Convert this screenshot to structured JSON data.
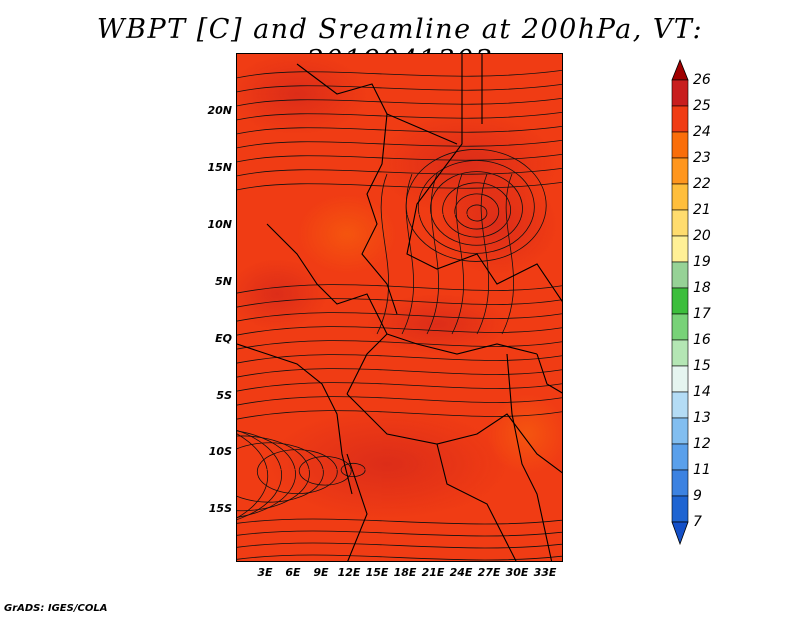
{
  "title": "WBPT [C] and Sreamline at 200hPa, VT: 2019041303",
  "footer": "GrADS: IGES/COLA",
  "map": {
    "variable": "WBPT [C]",
    "level": "200hPa",
    "valid_time": "2019041303",
    "lat_labels": [
      "20N",
      "15N",
      "10N",
      "5N",
      "EQ",
      "5S",
      "10S",
      "15S"
    ],
    "lon_labels": [
      "3E",
      "6E",
      "9E",
      "12E",
      "15E",
      "18E",
      "21E",
      "24E",
      "27E",
      "30E",
      "33E"
    ],
    "dominant_color": "#f03c14"
  },
  "colorbar": {
    "labels": [
      "26",
      "25",
      "24",
      "23",
      "22",
      "21",
      "20",
      "19",
      "18",
      "17",
      "16",
      "15",
      "14",
      "13",
      "12",
      "11",
      "9",
      "7"
    ],
    "colors": [
      "#a00000",
      "#c81e1e",
      "#f03c14",
      "#fa6e0a",
      "#ff961e",
      "#ffbe3c",
      "#ffdc6e",
      "#fff096",
      "#96d296",
      "#3cbe3c",
      "#78d278",
      "#b4e6b4",
      "#e6f5f0",
      "#b4dcf5",
      "#82bef0",
      "#5aa0eb",
      "#3c82e1",
      "#1e64d2",
      "#1450c8"
    ]
  }
}
